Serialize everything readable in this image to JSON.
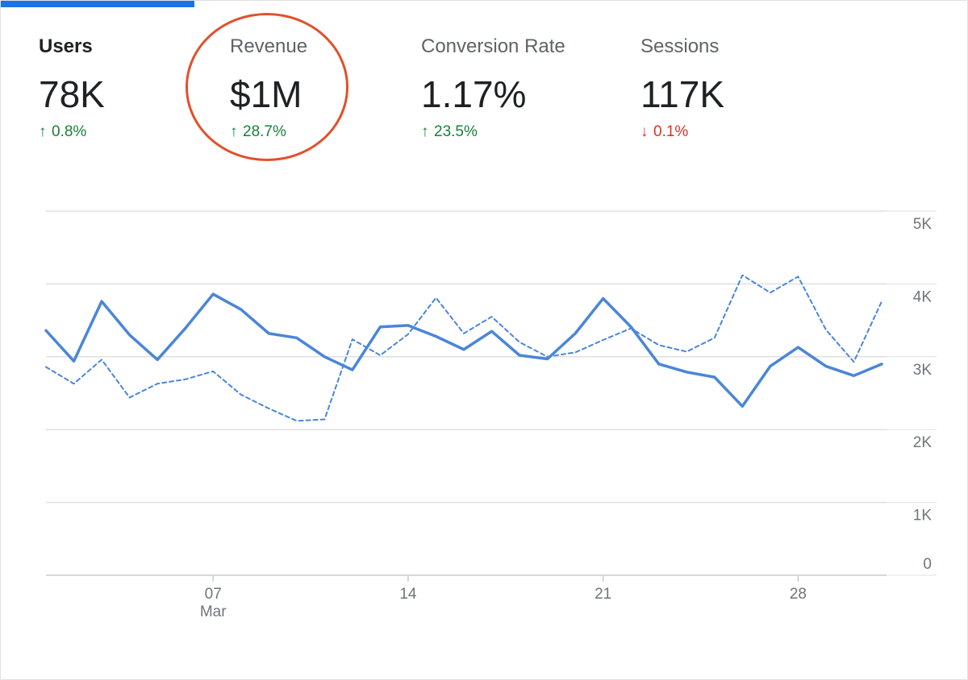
{
  "metrics": [
    {
      "key": "users",
      "label": "Users",
      "value": "78K",
      "change": "0.8%",
      "direction": "up",
      "active": true
    },
    {
      "key": "revenue",
      "label": "Revenue",
      "value": "$1M",
      "change": "28.7%",
      "direction": "up",
      "active": false,
      "highlighted": true
    },
    {
      "key": "conversion",
      "label": "Conversion Rate",
      "value": "1.17%",
      "change": "23.5%",
      "direction": "up",
      "active": false
    },
    {
      "key": "sessions",
      "label": "Sessions",
      "value": "117K",
      "change": "0.1%",
      "direction": "down",
      "active": false
    }
  ],
  "colors": {
    "accent": "#1a73e8",
    "series": "#4a86d8",
    "up": "#188038",
    "down": "#d93025",
    "highlight_ring": "#e0512c",
    "gridline": "#e0e0e0",
    "axis_text": "#70757a"
  },
  "icons": {
    "up": "arrow-up-icon",
    "down": "arrow-down-icon"
  },
  "chart_data": {
    "type": "line",
    "x": [
      1,
      2,
      3,
      4,
      5,
      6,
      7,
      8,
      9,
      10,
      11,
      12,
      13,
      14,
      15,
      16,
      17,
      18,
      19,
      20,
      21,
      22,
      23,
      24,
      25,
      26,
      27,
      28,
      29,
      30,
      31
    ],
    "series": [
      {
        "style": "solid",
        "values": [
          3360,
          2940,
          3760,
          3300,
          2960,
          3390,
          3860,
          3650,
          3320,
          3260,
          3000,
          2820,
          3410,
          3430,
          3280,
          3100,
          3350,
          3020,
          2970,
          3320,
          3800,
          3410,
          2900,
          2790,
          2720,
          2320,
          2870,
          3130,
          2870,
          2740,
          2900
        ]
      },
      {
        "style": "dashed",
        "values": [
          2860,
          2630,
          2960,
          2440,
          2630,
          2690,
          2800,
          2480,
          2290,
          2120,
          2140,
          3240,
          3020,
          3310,
          3810,
          3320,
          3550,
          3200,
          3000,
          3060,
          3230,
          3390,
          3160,
          3070,
          3260,
          4120,
          3880,
          4100,
          3370,
          2930,
          3760
        ]
      }
    ],
    "y_ticks": [
      "0",
      "1K",
      "2K",
      "3K",
      "4K",
      "5K"
    ],
    "ylim": [
      0,
      5000
    ],
    "x_ticks": [
      {
        "day": 7,
        "label": "07",
        "sublabel": "Mar"
      },
      {
        "day": 14,
        "label": "14",
        "sublabel": ""
      },
      {
        "day": 21,
        "label": "21",
        "sublabel": ""
      },
      {
        "day": 28,
        "label": "28",
        "sublabel": ""
      }
    ],
    "y_axis_position": "right",
    "grid": true
  }
}
